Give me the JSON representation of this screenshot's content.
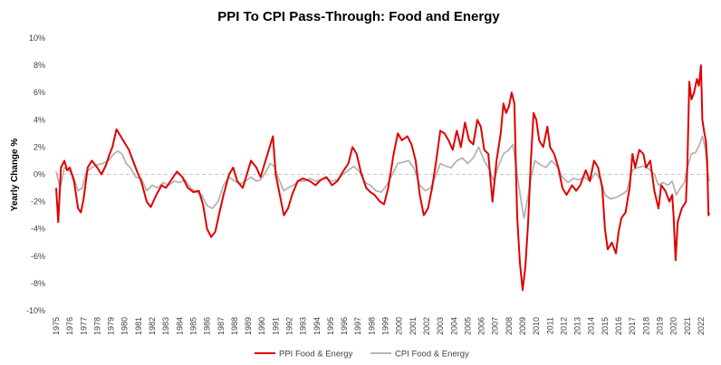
{
  "chart_data": {
    "type": "line",
    "title": "PPI To CPI Pass-Through: Food and Energy",
    "xlabel": "",
    "ylabel": "Yearly Change %",
    "ylim": [
      -10,
      10
    ],
    "xlim": [
      1975,
      2022.6
    ],
    "y_ticks": [
      "10%",
      "8%",
      "6%",
      "4%",
      "2%",
      "0%",
      "-2%",
      "-4%",
      "-6%",
      "-8%",
      "-10%"
    ],
    "x_ticks": [
      "1975",
      "1976",
      "1977",
      "1978",
      "1979",
      "1980",
      "1981",
      "1982",
      "1983",
      "1984",
      "1985",
      "1986",
      "1987",
      "1988",
      "1989",
      "1990",
      "1991",
      "1992",
      "1993",
      "1994",
      "1995",
      "1996",
      "1997",
      "1998",
      "1999",
      "2000",
      "2001",
      "2002",
      "2003",
      "2004",
      "2005",
      "2006",
      "2007",
      "2008",
      "2009",
      "2010",
      "2011",
      "2012",
      "2013",
      "2014",
      "2015",
      "2016",
      "2017",
      "2018",
      "2019",
      "2020",
      "2021",
      "2022"
    ],
    "grid": false,
    "legend_position": "bottom",
    "series": [
      {
        "name": "PPI Food & Energy",
        "color": "#e00000",
        "points": [
          [
            1975.0,
            -1.0
          ],
          [
            1975.15,
            -3.5
          ],
          [
            1975.35,
            0.5
          ],
          [
            1975.6,
            1.0
          ],
          [
            1975.8,
            0.3
          ],
          [
            1976.0,
            0.5
          ],
          [
            1976.3,
            -0.5
          ],
          [
            1976.6,
            -2.5
          ],
          [
            1976.8,
            -2.8
          ],
          [
            1977.0,
            -1.8
          ],
          [
            1977.3,
            0.5
          ],
          [
            1977.6,
            1.0
          ],
          [
            1978.0,
            0.5
          ],
          [
            1978.3,
            0.0
          ],
          [
            1978.6,
            0.6
          ],
          [
            1978.9,
            1.5
          ],
          [
            1979.1,
            2.0
          ],
          [
            1979.4,
            3.3
          ],
          [
            1979.7,
            2.8
          ],
          [
            1980.0,
            2.3
          ],
          [
            1980.3,
            1.8
          ],
          [
            1980.6,
            1.0
          ],
          [
            1980.9,
            0.2
          ],
          [
            1981.2,
            -0.5
          ],
          [
            1981.6,
            -2.0
          ],
          [
            1981.9,
            -2.4
          ],
          [
            1982.3,
            -1.5
          ],
          [
            1982.7,
            -0.8
          ],
          [
            1983.0,
            -1.0
          ],
          [
            1983.4,
            -0.4
          ],
          [
            1983.8,
            0.2
          ],
          [
            1984.2,
            -0.2
          ],
          [
            1984.6,
            -1.0
          ],
          [
            1985.0,
            -1.3
          ],
          [
            1985.4,
            -1.2
          ],
          [
            1985.7,
            -2.2
          ],
          [
            1986.0,
            -4.0
          ],
          [
            1986.3,
            -4.6
          ],
          [
            1986.6,
            -4.2
          ],
          [
            1986.9,
            -2.8
          ],
          [
            1987.2,
            -1.5
          ],
          [
            1987.6,
            0.0
          ],
          [
            1987.9,
            0.5
          ],
          [
            1988.2,
            -0.5
          ],
          [
            1988.6,
            -1.0
          ],
          [
            1988.9,
            0.0
          ],
          [
            1989.2,
            1.0
          ],
          [
            1989.6,
            0.5
          ],
          [
            1989.9,
            -0.2
          ],
          [
            1990.2,
            0.8
          ],
          [
            1990.5,
            1.8
          ],
          [
            1990.8,
            2.8
          ],
          [
            1991.0,
            0.0
          ],
          [
            1991.3,
            -1.5
          ],
          [
            1991.6,
            -3.0
          ],
          [
            1991.9,
            -2.5
          ],
          [
            1992.2,
            -1.5
          ],
          [
            1992.6,
            -0.5
          ],
          [
            1993.0,
            -0.3
          ],
          [
            1993.5,
            -0.5
          ],
          [
            1993.9,
            -0.8
          ],
          [
            1994.3,
            -0.4
          ],
          [
            1994.7,
            -0.2
          ],
          [
            1995.1,
            -0.8
          ],
          [
            1995.5,
            -0.5
          ],
          [
            1995.9,
            0.2
          ],
          [
            1996.3,
            0.8
          ],
          [
            1996.6,
            2.0
          ],
          [
            1996.9,
            1.5
          ],
          [
            1997.2,
            0.2
          ],
          [
            1997.6,
            -1.0
          ],
          [
            1997.9,
            -1.3
          ],
          [
            1998.2,
            -1.5
          ],
          [
            1998.6,
            -2.0
          ],
          [
            1998.9,
            -2.2
          ],
          [
            1999.2,
            -1.0
          ],
          [
            1999.6,
            1.5
          ],
          [
            1999.9,
            3.0
          ],
          [
            2000.2,
            2.5
          ],
          [
            2000.6,
            2.8
          ],
          [
            2000.9,
            2.2
          ],
          [
            2001.2,
            1.0
          ],
          [
            2001.5,
            -1.5
          ],
          [
            2001.8,
            -3.0
          ],
          [
            2002.1,
            -2.5
          ],
          [
            2002.4,
            -1.0
          ],
          [
            2002.7,
            1.0
          ],
          [
            2003.0,
            3.2
          ],
          [
            2003.3,
            3.0
          ],
          [
            2003.6,
            2.5
          ],
          [
            2003.9,
            1.8
          ],
          [
            2004.2,
            3.2
          ],
          [
            2004.5,
            2.0
          ],
          [
            2004.8,
            3.8
          ],
          [
            2005.1,
            2.5
          ],
          [
            2005.4,
            2.2
          ],
          [
            2005.7,
            4.0
          ],
          [
            2005.95,
            3.5
          ],
          [
            2006.2,
            1.8
          ],
          [
            2006.5,
            1.5
          ],
          [
            2006.8,
            -2.0
          ],
          [
            2007.1,
            1.0
          ],
          [
            2007.4,
            3.0
          ],
          [
            2007.6,
            5.2
          ],
          [
            2007.8,
            4.5
          ],
          [
            2008.0,
            5.0
          ],
          [
            2008.2,
            6.0
          ],
          [
            2008.4,
            5.2
          ],
          [
            2008.6,
            -3.0
          ],
          [
            2008.8,
            -6.5
          ],
          [
            2009.0,
            -8.5
          ],
          [
            2009.2,
            -6.8
          ],
          [
            2009.4,
            -3.5
          ],
          [
            2009.6,
            1.0
          ],
          [
            2009.8,
            4.5
          ],
          [
            2010.0,
            4.0
          ],
          [
            2010.2,
            2.5
          ],
          [
            2010.5,
            2.0
          ],
          [
            2010.8,
            3.5
          ],
          [
            2011.0,
            2.0
          ],
          [
            2011.3,
            1.5
          ],
          [
            2011.6,
            0.5
          ],
          [
            2011.9,
            -1.0
          ],
          [
            2012.2,
            -1.5
          ],
          [
            2012.6,
            -0.8
          ],
          [
            2012.9,
            -1.2
          ],
          [
            2013.2,
            -0.8
          ],
          [
            2013.6,
            0.3
          ],
          [
            2013.9,
            -0.5
          ],
          [
            2014.2,
            1.0
          ],
          [
            2014.5,
            0.5
          ],
          [
            2014.8,
            -1.0
          ],
          [
            2015.0,
            -4.0
          ],
          [
            2015.2,
            -5.5
          ],
          [
            2015.5,
            -5.0
          ],
          [
            2015.8,
            -5.8
          ],
          [
            2016.0,
            -4.2
          ],
          [
            2016.2,
            -3.2
          ],
          [
            2016.5,
            -2.8
          ],
          [
            2016.8,
            -1.0
          ],
          [
            2017.0,
            1.5
          ],
          [
            2017.2,
            0.5
          ],
          [
            2017.5,
            1.8
          ],
          [
            2017.8,
            1.5
          ],
          [
            2018.0,
            0.5
          ],
          [
            2018.3,
            1.0
          ],
          [
            2018.6,
            -1.2
          ],
          [
            2018.9,
            -2.5
          ],
          [
            2019.1,
            -0.8
          ],
          [
            2019.4,
            -1.2
          ],
          [
            2019.7,
            -2.0
          ],
          [
            2019.9,
            -1.5
          ],
          [
            2020.0,
            -3.0
          ],
          [
            2020.15,
            -6.3
          ],
          [
            2020.3,
            -3.5
          ],
          [
            2020.6,
            -2.5
          ],
          [
            2020.9,
            -2.0
          ],
          [
            2021.0,
            0.5
          ],
          [
            2021.15,
            6.8
          ],
          [
            2021.3,
            5.5
          ],
          [
            2021.5,
            6.0
          ],
          [
            2021.7,
            7.0
          ],
          [
            2021.85,
            6.5
          ],
          [
            2022.0,
            8.0
          ],
          [
            2022.1,
            4.0
          ],
          [
            2022.25,
            3.0
          ],
          [
            2022.35,
            2.5
          ],
          [
            2022.45,
            1.0
          ],
          [
            2022.55,
            -3.0
          ],
          [
            2022.6,
            -2.8
          ]
        ]
      },
      {
        "name": "CPI Food & Energy",
        "color": "#b4b4b4",
        "points": [
          [
            1975.0,
            0.2
          ],
          [
            1975.3,
            -1.0
          ],
          [
            1975.6,
            0.5
          ],
          [
            1975.9,
            0.3
          ],
          [
            1976.2,
            0.0
          ],
          [
            1976.6,
            -1.2
          ],
          [
            1976.9,
            -1.0
          ],
          [
            1977.2,
            0.2
          ],
          [
            1977.6,
            0.5
          ],
          [
            1978.0,
            0.7
          ],
          [
            1978.4,
            0.8
          ],
          [
            1978.8,
            1.0
          ],
          [
            1979.2,
            1.5
          ],
          [
            1979.5,
            1.7
          ],
          [
            1979.8,
            1.5
          ],
          [
            1980.1,
            0.8
          ],
          [
            1980.4,
            0.5
          ],
          [
            1980.8,
            -0.2
          ],
          [
            1981.2,
            -0.3
          ],
          [
            1981.6,
            -1.2
          ],
          [
            1982.0,
            -0.8
          ],
          [
            1982.4,
            -1.0
          ],
          [
            1982.8,
            -0.6
          ],
          [
            1983.2,
            -0.8
          ],
          [
            1983.6,
            -0.5
          ],
          [
            1984.0,
            -0.6
          ],
          [
            1984.4,
            -0.4
          ],
          [
            1984.8,
            -1.0
          ],
          [
            1985.2,
            -1.3
          ],
          [
            1985.6,
            -1.5
          ],
          [
            1986.0,
            -2.3
          ],
          [
            1986.4,
            -2.5
          ],
          [
            1986.8,
            -2.0
          ],
          [
            1987.2,
            -0.8
          ],
          [
            1987.6,
            -0.2
          ],
          [
            1988.0,
            -0.5
          ],
          [
            1988.4,
            -0.7
          ],
          [
            1988.8,
            -0.5
          ],
          [
            1989.2,
            -0.2
          ],
          [
            1989.6,
            -0.5
          ],
          [
            1989.9,
            -0.4
          ],
          [
            1990.3,
            0.2
          ],
          [
            1990.6,
            0.8
          ],
          [
            1990.9,
            0.6
          ],
          [
            1991.2,
            -0.3
          ],
          [
            1991.6,
            -1.2
          ],
          [
            1991.9,
            -1.0
          ],
          [
            1992.3,
            -0.8
          ],
          [
            1992.7,
            -0.5
          ],
          [
            1993.1,
            -0.5
          ],
          [
            1993.5,
            -0.3
          ],
          [
            1993.9,
            -0.5
          ],
          [
            1994.3,
            -0.4
          ],
          [
            1994.7,
            -0.3
          ],
          [
            1995.1,
            -0.5
          ],
          [
            1995.5,
            -0.4
          ],
          [
            1995.9,
            0.0
          ],
          [
            1996.3,
            0.3
          ],
          [
            1996.7,
            0.6
          ],
          [
            1997.1,
            0.2
          ],
          [
            1997.5,
            -0.6
          ],
          [
            1997.9,
            -0.8
          ],
          [
            1998.3,
            -1.2
          ],
          [
            1998.7,
            -1.3
          ],
          [
            1999.1,
            -0.8
          ],
          [
            1999.5,
            0.0
          ],
          [
            1999.9,
            0.8
          ],
          [
            2000.3,
            0.9
          ],
          [
            2000.7,
            1.0
          ],
          [
            2001.1,
            0.4
          ],
          [
            2001.5,
            -0.8
          ],
          [
            2001.9,
            -1.2
          ],
          [
            2002.3,
            -1.0
          ],
          [
            2002.7,
            0.0
          ],
          [
            2003.0,
            0.8
          ],
          [
            2003.4,
            0.6
          ],
          [
            2003.8,
            0.5
          ],
          [
            2004.2,
            1.0
          ],
          [
            2004.6,
            1.2
          ],
          [
            2005.0,
            0.8
          ],
          [
            2005.4,
            1.2
          ],
          [
            2005.8,
            2.0
          ],
          [
            2006.2,
            1.0
          ],
          [
            2006.6,
            0.3
          ],
          [
            2006.9,
            -0.5
          ],
          [
            2007.2,
            0.5
          ],
          [
            2007.6,
            1.5
          ],
          [
            2008.0,
            1.8
          ],
          [
            2008.3,
            2.2
          ],
          [
            2008.6,
            0.0
          ],
          [
            2008.9,
            -2.0
          ],
          [
            2009.1,
            -3.2
          ],
          [
            2009.3,
            -2.2
          ],
          [
            2009.6,
            -0.3
          ],
          [
            2009.9,
            1.0
          ],
          [
            2010.3,
            0.7
          ],
          [
            2010.7,
            0.5
          ],
          [
            2011.1,
            1.0
          ],
          [
            2011.5,
            0.6
          ],
          [
            2011.9,
            -0.2
          ],
          [
            2012.3,
            -0.6
          ],
          [
            2012.7,
            -0.3
          ],
          [
            2013.1,
            -0.4
          ],
          [
            2013.5,
            -0.2
          ],
          [
            2013.9,
            -0.5
          ],
          [
            2014.3,
            0.1
          ],
          [
            2014.7,
            -0.4
          ],
          [
            2015.0,
            -1.5
          ],
          [
            2015.4,
            -1.8
          ],
          [
            2015.8,
            -1.7
          ],
          [
            2016.2,
            -1.5
          ],
          [
            2016.6,
            -1.2
          ],
          [
            2017.0,
            0.3
          ],
          [
            2017.4,
            0.5
          ],
          [
            2017.8,
            0.6
          ],
          [
            2018.2,
            0.4
          ],
          [
            2018.6,
            0.0
          ],
          [
            2018.9,
            -0.8
          ],
          [
            2019.2,
            -0.6
          ],
          [
            2019.6,
            -0.8
          ],
          [
            2019.9,
            -0.5
          ],
          [
            2020.2,
            -1.5
          ],
          [
            2020.5,
            -1.0
          ],
          [
            2020.8,
            -0.6
          ],
          [
            2021.0,
            0.5
          ],
          [
            2021.3,
            1.5
          ],
          [
            2021.6,
            1.6
          ],
          [
            2021.9,
            2.2
          ],
          [
            2022.1,
            2.8
          ],
          [
            2022.3,
            2.0
          ],
          [
            2022.45,
            0.5
          ],
          [
            2022.6,
            -0.5
          ]
        ]
      }
    ]
  }
}
